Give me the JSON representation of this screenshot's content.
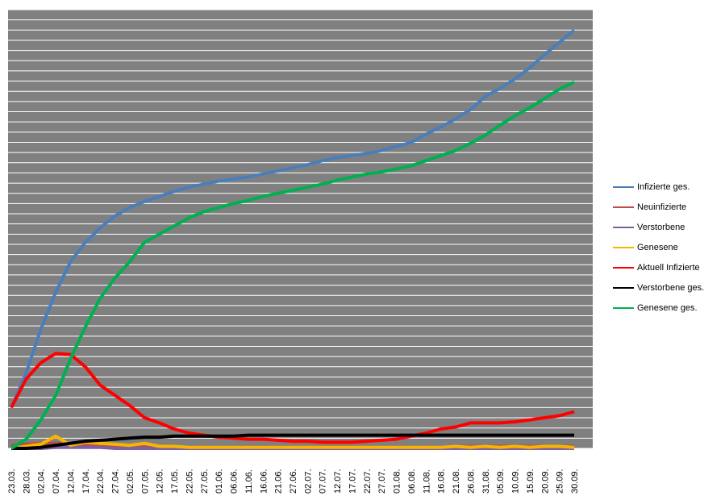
{
  "chart_data": {
    "type": "line",
    "categories": [
      "23.03.",
      "28.03.",
      "02.04.",
      "07.04.",
      "12.04.",
      "17.04.",
      "22.04.",
      "27.04.",
      "02.05.",
      "07.05.",
      "12.05.",
      "17.05.",
      "22.05.",
      "27.05.",
      "01.06.",
      "06.06.",
      "11.06.",
      "16.06.",
      "21.06.",
      "27.06.",
      "02.07.",
      "07.07.",
      "12.07.",
      "17.07.",
      "22.07.",
      "27.07.",
      "01.08.",
      "06.08.",
      "11.08.",
      "16.08.",
      "21.08.",
      "26.08.",
      "31.08.",
      "05.09.",
      "10.09.",
      "15.09.",
      "20.09.",
      "25.09.",
      "30.09."
    ],
    "series": [
      {
        "name": "Infizierte ges.",
        "color": "#4a7ebb",
        "values": [
          4.0,
          7.4,
          11.7,
          15.3,
          18.3,
          20.2,
          21.6,
          22.8,
          23.6,
          24.2,
          24.7,
          25.2,
          25.6,
          25.9,
          26.2,
          26.4,
          26.6,
          26.9,
          27.2,
          27.5,
          27.8,
          28.2,
          28.5,
          28.7,
          28.9,
          29.2,
          29.6,
          30.0,
          30.8,
          31.5,
          32.3,
          33.2,
          34.5,
          35.3,
          36.2,
          37.3,
          38.6,
          39.8,
          41.0
        ]
      },
      {
        "name": "Neuinfizierte",
        "color": "#be4b48",
        "values": [
          0.3,
          0.4,
          0.5,
          0.5,
          0.4,
          0.3,
          0.2,
          0.2,
          0.1,
          0.1,
          0.1,
          0.1,
          0.1,
          0.1,
          0.1,
          0.1,
          0.1,
          0.1,
          0.1,
          0.1,
          0.1,
          0.1,
          0.1,
          0.1,
          0.1,
          0.1,
          0.1,
          0.1,
          0.1,
          0.1,
          0.2,
          0.2,
          0.2,
          0.2,
          0.2,
          0.2,
          0.2,
          0.2,
          0.2
        ]
      },
      {
        "name": "Verstorbene",
        "color": "#7d60a0",
        "values": [
          0,
          0,
          0,
          0.1,
          0.1,
          0.1,
          0.1,
          0,
          0,
          0,
          0,
          0,
          0,
          0,
          0,
          0,
          0,
          0,
          0,
          0,
          0,
          0,
          0,
          0,
          0,
          0,
          0,
          0,
          0,
          0,
          0,
          0,
          0,
          0,
          0,
          0,
          0,
          0,
          0
        ]
      },
      {
        "name": "Genesene",
        "color": "#f7b500",
        "values": [
          0,
          0.2,
          0.4,
          1.2,
          0.3,
          0.6,
          0.5,
          0.4,
          0.3,
          0.5,
          0.2,
          0.2,
          0.1,
          0.1,
          0.1,
          0.1,
          0.1,
          0.1,
          0.1,
          0.1,
          0.1,
          0.1,
          0.1,
          0.1,
          0.1,
          0.1,
          0.1,
          0.1,
          0.1,
          0.1,
          0.2,
          0.1,
          0.2,
          0.1,
          0.2,
          0.1,
          0.2,
          0.2,
          0.1
        ]
      },
      {
        "name": "Aktuell Infizierte",
        "color": "#ff0000",
        "values": [
          4.0,
          6.8,
          8.4,
          9.3,
          9.2,
          8.0,
          6.2,
          5.2,
          4.2,
          3.0,
          2.5,
          1.9,
          1.5,
          1.3,
          1.1,
          1.0,
          0.9,
          0.9,
          0.8,
          0.7,
          0.7,
          0.6,
          0.6,
          0.6,
          0.7,
          0.8,
          0.9,
          1.2,
          1.5,
          1.9,
          2.1,
          2.5,
          2.5,
          2.5,
          2.6,
          2.8,
          3.0,
          3.2,
          3.6
        ]
      },
      {
        "name": "Verstorbene ges.",
        "color": "#000000",
        "values": [
          0,
          0,
          0.1,
          0.3,
          0.5,
          0.7,
          0.8,
          0.9,
          1.0,
          1.1,
          1.1,
          1.2,
          1.2,
          1.2,
          1.2,
          1.2,
          1.3,
          1.3,
          1.3,
          1.3,
          1.3,
          1.3,
          1.3,
          1.3,
          1.3,
          1.3,
          1.3,
          1.3,
          1.3,
          1.3,
          1.3,
          1.3,
          1.3,
          1.3,
          1.3,
          1.3,
          1.3,
          1.3,
          1.3
        ]
      },
      {
        "name": "Genesene ges.",
        "color": "#00b050",
        "values": [
          0,
          0.9,
          2.8,
          5.2,
          8.8,
          11.9,
          14.7,
          16.7,
          18.3,
          20.2,
          21.0,
          21.8,
          22.6,
          23.2,
          23.6,
          24.0,
          24.3,
          24.7,
          25.0,
          25.3,
          25.6,
          25.9,
          26.3,
          26.6,
          26.9,
          27.1,
          27.4,
          27.7,
          28.2,
          28.7,
          29.2,
          29.9,
          30.7,
          31.7,
          32.6,
          33.4,
          34.3,
          35.2,
          35.9
        ]
      }
    ],
    "ylim": [
      0,
      43
    ],
    "yticks": [
      0,
      1,
      2,
      3,
      4,
      5,
      6,
      7,
      8,
      9,
      10,
      11,
      12,
      13,
      14,
      15,
      16,
      17,
      18,
      19,
      20,
      21,
      22,
      23,
      24,
      25,
      26,
      27,
      28,
      29,
      30,
      31,
      32,
      33,
      34,
      35,
      36,
      37,
      38,
      39,
      40,
      41,
      42,
      43
    ],
    "grid": true,
    "plot_background": "#808080",
    "grid_color": "#ffffff",
    "legend": "right"
  }
}
